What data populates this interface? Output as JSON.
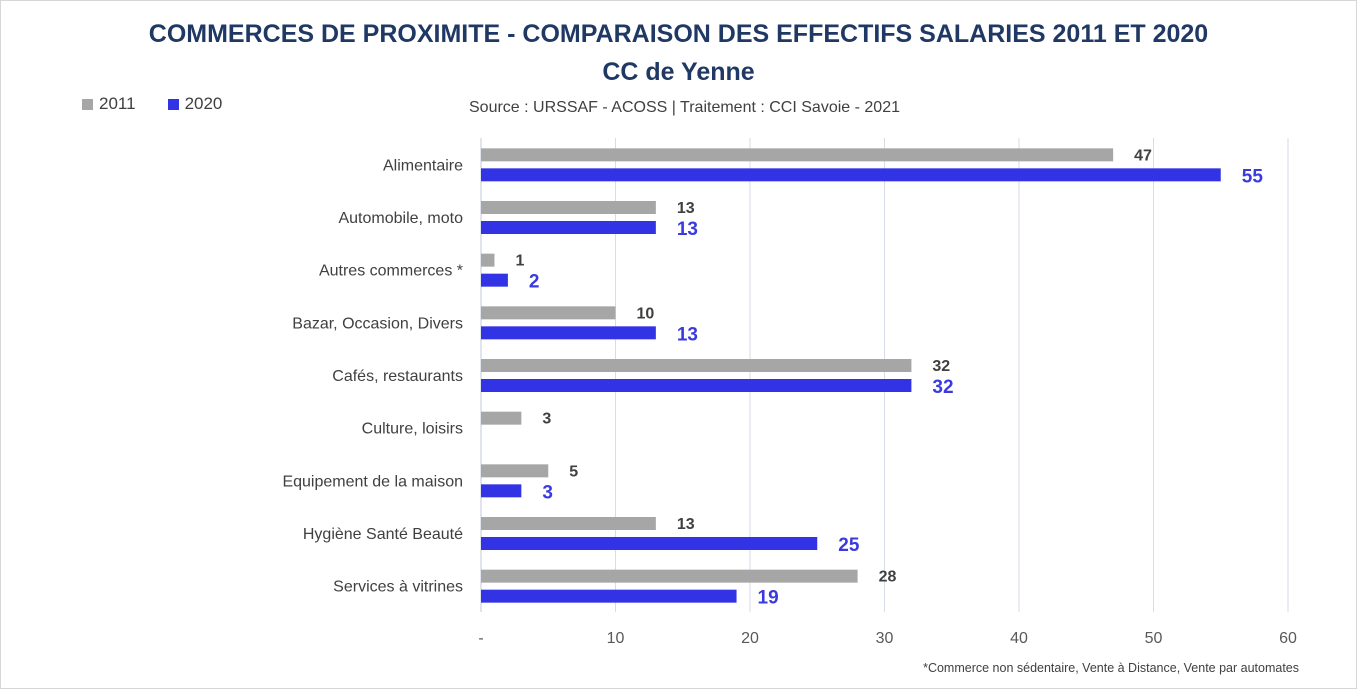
{
  "chart_data": {
    "type": "bar",
    "orientation": "horizontal",
    "title": "COMMERCES DE PROXIMITE - COMPARAISON DES EFFECTIFS SALARIES 2011 ET 2020",
    "subtitle": "CC de Yenne",
    "source": "Source  : URSSAF - ACOSS  |  Traitement : CCI Savoie - 2021",
    "footnote": "*Commerce non sédentaire, Vente à Distance, Vente par automates",
    "categories": [
      "Alimentaire",
      "Automobile, moto",
      "Autres commerces *",
      "Bazar, Occasion, Divers",
      "Cafés, restaurants",
      "Culture, loisirs",
      "Equipement de la maison",
      "Hygiène Santé Beauté",
      "Services à vitrines"
    ],
    "series": [
      {
        "name": "2011",
        "color": "#a6a6a6",
        "values": [
          47,
          13,
          1,
          10,
          32,
          3,
          5,
          13,
          28
        ]
      },
      {
        "name": "2020",
        "color": "#3333e6",
        "values": [
          55,
          13,
          2,
          13,
          32,
          null,
          3,
          25,
          19
        ]
      }
    ],
    "xlim": [
      0,
      60
    ],
    "xticks": [
      "-",
      "10",
      "20",
      "30",
      "40",
      "50",
      "60"
    ],
    "grid": true,
    "legend_position": "top-left"
  }
}
